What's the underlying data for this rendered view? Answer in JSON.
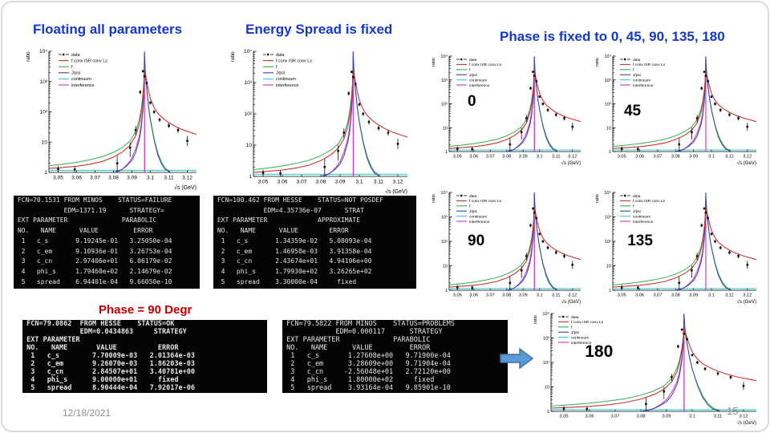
{
  "slide": {
    "titles": {
      "left": "Floating all parameters",
      "middle": "Energy Spread is fixed",
      "right": "Phase is fixed to 0, 45, 90, 135, 180"
    },
    "subtitle_phase90": "Phase = 90 Degr",
    "footer": {
      "date": "12/18/2021",
      "page": "15"
    },
    "colors": {
      "title_blue": "#1438c8",
      "subtitle_red": "#c00000",
      "arrow_fill": "#5b9bd5",
      "arrow_border": "#41719c",
      "footer_gray": "#8f8f8f"
    }
  },
  "terminals": [
    {
      "id": "fit-floating",
      "lines": [
        " FCN=70.1531 FROM MINOS    STATUS=FAILURE",
        "             EDM=1371.19      STRATEGY=",
        " EXT PARAMETER              PARABOLIC",
        " NO.   NAME      VALUE         ERROR",
        "  1   c_s       9.19245e-01   3.25050e-04",
        "  2   c_em      9.10936e-01   3.26753e-04",
        "  3   c_cn      2.97406e+01   6.06179e-02",
        "  4   phi_s     1.79460e+02   2.14679e-02",
        "  5   spread    6.94401e-04   9.66050e-10"
      ]
    },
    {
      "id": "fit-espread-fixed",
      "lines": [
        " FCN=100.462 FROM HESSE    STATUS=NOT POSDEF",
        "             EDM=4.35736e-07      STRAT",
        " EXT PARAMETER             APPROXIMATE",
        " NO.   NAME      VALUE        ERROR",
        "  1   c_s       1.34359e-02   5.08093e-04",
        "  2   c_em      1.46958e-03   3.91358e-04",
        "  3   c_cn      2.43674e+01   4.94106e+00",
        "  4   phi_s     1.79930e+02   3.26265e+02",
        "  5   spread    3.30000e-04     fixed"
      ]
    },
    {
      "id": "fit-phase-90",
      "lines": [
        " FCN=79.0862  FROM HESSE    STATUS=OK",
        "              EDM=0.0434863     STRATEGY",
        " EXT PARAMETER",
        " NO.   NAME       VALUE          ERROR",
        "  1   c_s        7.70009e-03   2.01364e-03",
        "  2   c_em       9.26070e-03   1.86203e-03",
        "  3   c_cn       2.84507e+01   3.40781e+00",
        "  4   phi_s      9.00000e+01     fixed",
        "  5   spread     8.90444e-04   7.92017e-06"
      ]
    },
    {
      "id": "fit-phase-180",
      "lines": [
        " FCN=79.5822 FROM MINOS    STATUS=PROBLEMS",
        "             EDM=0.000117      STRATEGY",
        " EXT PARAMETER             PARABOLIC",
        " NO.   NAME      VALUE         ERROR",
        "  1   c_s       1.27608e+00   9.71900e-04",
        "  2   c_em      3.28609e+00   9.71904e-04",
        "  3   c_cn     -2.56048e+01   2.72120e+00",
        "  4   phi_s     1.80000e+02     fixed",
        "  5   spread    3.93164e-04   9.85901e-10"
      ]
    }
  ],
  "chart_data": {
    "type": "line",
    "shared": {
      "title": "",
      "xlabel": "√s (GeV)",
      "ylabel": "ratio",
      "xlim": [
        3.045,
        3.125
      ],
      "ylim_log": [
        1,
        10000
      ],
      "xticks": [
        3.05,
        3.06,
        3.07,
        3.08,
        3.09,
        3.1,
        3.11,
        3.12
      ],
      "yticks": [
        "1",
        "10",
        "10²",
        "10³",
        "10⁴"
      ],
      "grid": false,
      "legend_position": "top-left",
      "peak_x": 3.0968,
      "legend": [
        {
          "label": "data",
          "color": "#111111",
          "type": "marker"
        },
        {
          "label": "f conv ISR conv Ls",
          "color": "#cc3333",
          "type": "line"
        },
        {
          "label": "f",
          "color": "#2eaf4e",
          "type": "line"
        },
        {
          "label": "J/psi",
          "color": "#3344aa",
          "type": "line"
        },
        {
          "label": "continuum",
          "color": "#33cfd4",
          "type": "line"
        },
        {
          "label": "interference",
          "color": "#cc33cc",
          "type": "line"
        }
      ],
      "series": {
        "fit": [
          [
            3.045,
            1.35
          ],
          [
            3.052,
            1.45
          ],
          [
            3.06,
            1.6
          ],
          [
            3.067,
            1.85
          ],
          [
            3.074,
            2.3
          ],
          [
            3.08,
            3.2
          ],
          [
            3.085,
            4.8
          ],
          [
            3.089,
            8
          ],
          [
            3.092,
            16
          ],
          [
            3.094,
            40
          ],
          [
            3.095,
            90
          ],
          [
            3.096,
            300
          ],
          [
            3.0965,
            800
          ],
          [
            3.0968,
            2300
          ],
          [
            3.0972,
            2000
          ],
          [
            3.098,
            1000
          ],
          [
            3.099,
            500
          ],
          [
            3.1,
            270
          ],
          [
            3.102,
            140
          ],
          [
            3.104,
            90
          ],
          [
            3.107,
            60
          ],
          [
            3.11,
            44
          ],
          [
            3.114,
            32
          ],
          [
            3.118,
            25
          ],
          [
            3.125,
            18
          ]
        ],
        "f": [
          [
            3.045,
            1.65
          ],
          [
            3.052,
            1.85
          ],
          [
            3.06,
            2.15
          ],
          [
            3.067,
            2.6
          ],
          [
            3.074,
            3.3
          ],
          [
            3.08,
            4.6
          ],
          [
            3.085,
            6.8
          ],
          [
            3.089,
            11
          ],
          [
            3.092,
            22
          ],
          [
            3.094,
            55
          ],
          [
            3.095,
            120
          ],
          [
            3.096,
            400
          ],
          [
            3.0965,
            1100
          ],
          [
            3.0968,
            2800
          ],
          [
            3.0972,
            1600
          ],
          [
            3.098,
            550
          ],
          [
            3.099,
            160
          ],
          [
            3.1,
            55
          ],
          [
            3.102,
            13
          ],
          [
            3.104,
            4.5
          ],
          [
            3.106,
            2.2
          ],
          [
            3.108,
            1.4
          ],
          [
            3.111,
            1.0
          ]
        ],
        "jpsi": [
          [
            3.08,
            1.0
          ],
          [
            3.084,
            1.2
          ],
          [
            3.087,
            1.6
          ],
          [
            3.09,
            2.5
          ],
          [
            3.092,
            4.5
          ],
          [
            3.094,
            12
          ],
          [
            3.095,
            28
          ],
          [
            3.096,
            120
          ],
          [
            3.0965,
            600
          ],
          [
            3.0968,
            9500
          ],
          [
            3.0972,
            2500
          ],
          [
            3.098,
            600
          ],
          [
            3.099,
            150
          ],
          [
            3.1,
            55
          ],
          [
            3.102,
            12
          ],
          [
            3.104,
            3.8
          ],
          [
            3.106,
            1.9
          ],
          [
            3.108,
            1.25
          ],
          [
            3.111,
            1.0
          ]
        ],
        "continuum": [
          [
            3.045,
            1.17
          ],
          [
            3.125,
            1.17
          ]
        ],
        "interference": [
          [
            3.082,
            1.0
          ],
          [
            3.085,
            1.3
          ],
          [
            3.088,
            2.0
          ],
          [
            3.09,
            3.0
          ],
          [
            3.092,
            6.0
          ],
          [
            3.094,
            16
          ],
          [
            3.095,
            38
          ],
          [
            3.096,
            160
          ],
          [
            3.0965,
            520
          ],
          [
            3.0968,
            1600
          ],
          [
            3.0969,
            1.0
          ]
        ]
      },
      "data_points": [
        [
          3.05,
          1.3,
          1.0,
          1.65
        ],
        [
          3.059,
          1.25,
          0.95,
          1.6
        ],
        [
          3.082,
          2.0,
          1.0,
          3.6
        ],
        [
          3.089,
          6.5,
          3.2,
          10
        ],
        [
          3.092,
          25,
          17,
          34
        ],
        [
          3.0945,
          450,
          380,
          530
        ],
        [
          3.096,
          2200,
          2000,
          2400
        ],
        [
          3.0968,
          1500,
          1350,
          1650
        ],
        [
          3.098,
          900,
          800,
          1000
        ],
        [
          3.1,
          200,
          175,
          228
        ],
        [
          3.102,
          100,
          85,
          115
        ],
        [
          3.105,
          55,
          46,
          65
        ],
        [
          3.11,
          35,
          29,
          42
        ],
        [
          3.115,
          25,
          20,
          31
        ],
        [
          3.12,
          11,
          7.5,
          16
        ]
      ]
    },
    "plots": [
      {
        "id": "floating-all-parameters",
        "annotation": ""
      },
      {
        "id": "energy-spread-fixed",
        "annotation": ""
      },
      {
        "id": "phase-0",
        "annotation": "0"
      },
      {
        "id": "phase-45",
        "annotation": "45"
      },
      {
        "id": "phase-90",
        "annotation": "90"
      },
      {
        "id": "phase-135",
        "annotation": "135"
      },
      {
        "id": "phase-180",
        "annotation": "180"
      }
    ]
  }
}
